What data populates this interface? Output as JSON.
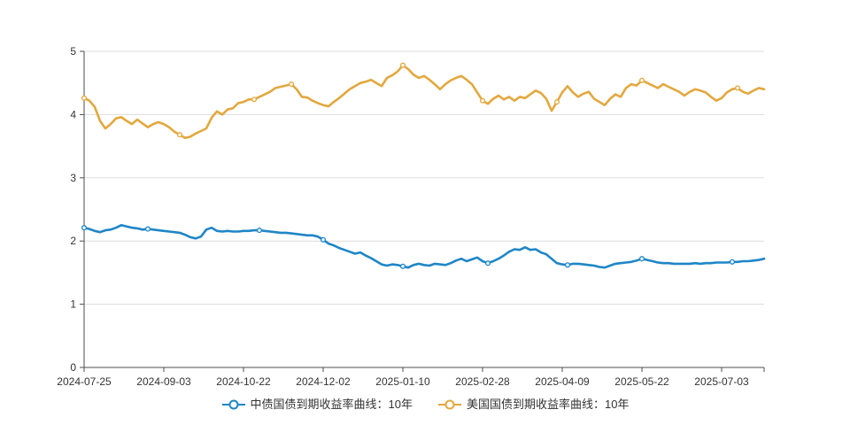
{
  "page": {
    "background": "#ffffff"
  },
  "chart_data": {
    "type": "line",
    "title": "",
    "xlabel": "",
    "ylabel": "",
    "ylim": [
      0,
      5
    ],
    "y_ticks": [
      0,
      1,
      2,
      3,
      4,
      5
    ],
    "grid": true,
    "legend_position": "bottom",
    "colors": {
      "axis": "#4d4d4d",
      "grid": "#dcdcdc",
      "label": "#333333"
    },
    "x_tick_labels": [
      "2024-07-25",
      "2024-09-03",
      "2024-10-22",
      "2024-12-02",
      "2025-01-10",
      "2025-02-28",
      "2025-04-09",
      "2025-05-22",
      "2025-07-03"
    ],
    "x_tick_indices": [
      0,
      15,
      30,
      45,
      60,
      75,
      90,
      105,
      120
    ],
    "n_points": 129,
    "series": [
      {
        "name": "中债国债到期收益率曲线：10年",
        "color": "#1f86c7",
        "marker_indices": [
          0,
          12,
          33,
          45,
          60,
          76,
          91,
          105,
          122
        ],
        "values": [
          2.21,
          2.19,
          2.16,
          2.14,
          2.17,
          2.18,
          2.21,
          2.25,
          2.23,
          2.21,
          2.2,
          2.18,
          2.19,
          2.18,
          2.17,
          2.16,
          2.15,
          2.14,
          2.13,
          2.1,
          2.06,
          2.04,
          2.07,
          2.18,
          2.21,
          2.16,
          2.15,
          2.16,
          2.15,
          2.15,
          2.16,
          2.16,
          2.17,
          2.17,
          2.16,
          2.15,
          2.14,
          2.13,
          2.13,
          2.12,
          2.11,
          2.1,
          2.09,
          2.09,
          2.07,
          2.02,
          1.96,
          1.93,
          1.89,
          1.86,
          1.83,
          1.8,
          1.82,
          1.77,
          1.73,
          1.68,
          1.63,
          1.61,
          1.63,
          1.62,
          1.6,
          1.58,
          1.62,
          1.64,
          1.62,
          1.61,
          1.64,
          1.63,
          1.62,
          1.65,
          1.69,
          1.72,
          1.68,
          1.71,
          1.74,
          1.68,
          1.65,
          1.68,
          1.72,
          1.77,
          1.83,
          1.87,
          1.86,
          1.9,
          1.86,
          1.87,
          1.82,
          1.79,
          1.72,
          1.65,
          1.63,
          1.62,
          1.64,
          1.64,
          1.63,
          1.62,
          1.61,
          1.59,
          1.58,
          1.61,
          1.64,
          1.65,
          1.66,
          1.67,
          1.69,
          1.72,
          1.7,
          1.68,
          1.66,
          1.65,
          1.65,
          1.64,
          1.64,
          1.64,
          1.64,
          1.65,
          1.64,
          1.65,
          1.65,
          1.66,
          1.66,
          1.66,
          1.67,
          1.67,
          1.68,
          1.68,
          1.69,
          1.7,
          1.72
        ]
      },
      {
        "name": "美国国债到期收益率曲线：10年",
        "color": "#e2a83e",
        "marker_indices": [
          0,
          18,
          32,
          39,
          60,
          75,
          89,
          105,
          123
        ],
        "values": [
          4.26,
          4.22,
          4.12,
          3.9,
          3.78,
          3.85,
          3.94,
          3.96,
          3.9,
          3.85,
          3.92,
          3.86,
          3.8,
          3.85,
          3.88,
          3.85,
          3.8,
          3.73,
          3.68,
          3.63,
          3.65,
          3.7,
          3.74,
          3.78,
          3.95,
          4.05,
          4.0,
          4.08,
          4.1,
          4.18,
          4.2,
          4.24,
          4.24,
          4.28,
          4.32,
          4.36,
          4.42,
          4.44,
          4.46,
          4.48,
          4.4,
          4.28,
          4.27,
          4.22,
          4.18,
          4.15,
          4.13,
          4.2,
          4.26,
          4.33,
          4.4,
          4.45,
          4.5,
          4.52,
          4.55,
          4.5,
          4.45,
          4.58,
          4.62,
          4.68,
          4.78,
          4.72,
          4.63,
          4.58,
          4.61,
          4.55,
          4.48,
          4.4,
          4.48,
          4.54,
          4.58,
          4.61,
          4.55,
          4.48,
          4.35,
          4.22,
          4.17,
          4.25,
          4.3,
          4.24,
          4.28,
          4.22,
          4.28,
          4.26,
          4.32,
          4.38,
          4.34,
          4.25,
          4.06,
          4.2,
          4.35,
          4.45,
          4.35,
          4.28,
          4.33,
          4.36,
          4.25,
          4.2,
          4.15,
          4.25,
          4.32,
          4.28,
          4.42,
          4.48,
          4.46,
          4.54,
          4.5,
          4.46,
          4.42,
          4.48,
          4.44,
          4.4,
          4.36,
          4.3,
          4.36,
          4.4,
          4.38,
          4.35,
          4.28,
          4.22,
          4.26,
          4.35,
          4.4,
          4.42,
          4.36,
          4.33,
          4.38,
          4.42,
          4.4
        ]
      }
    ]
  }
}
